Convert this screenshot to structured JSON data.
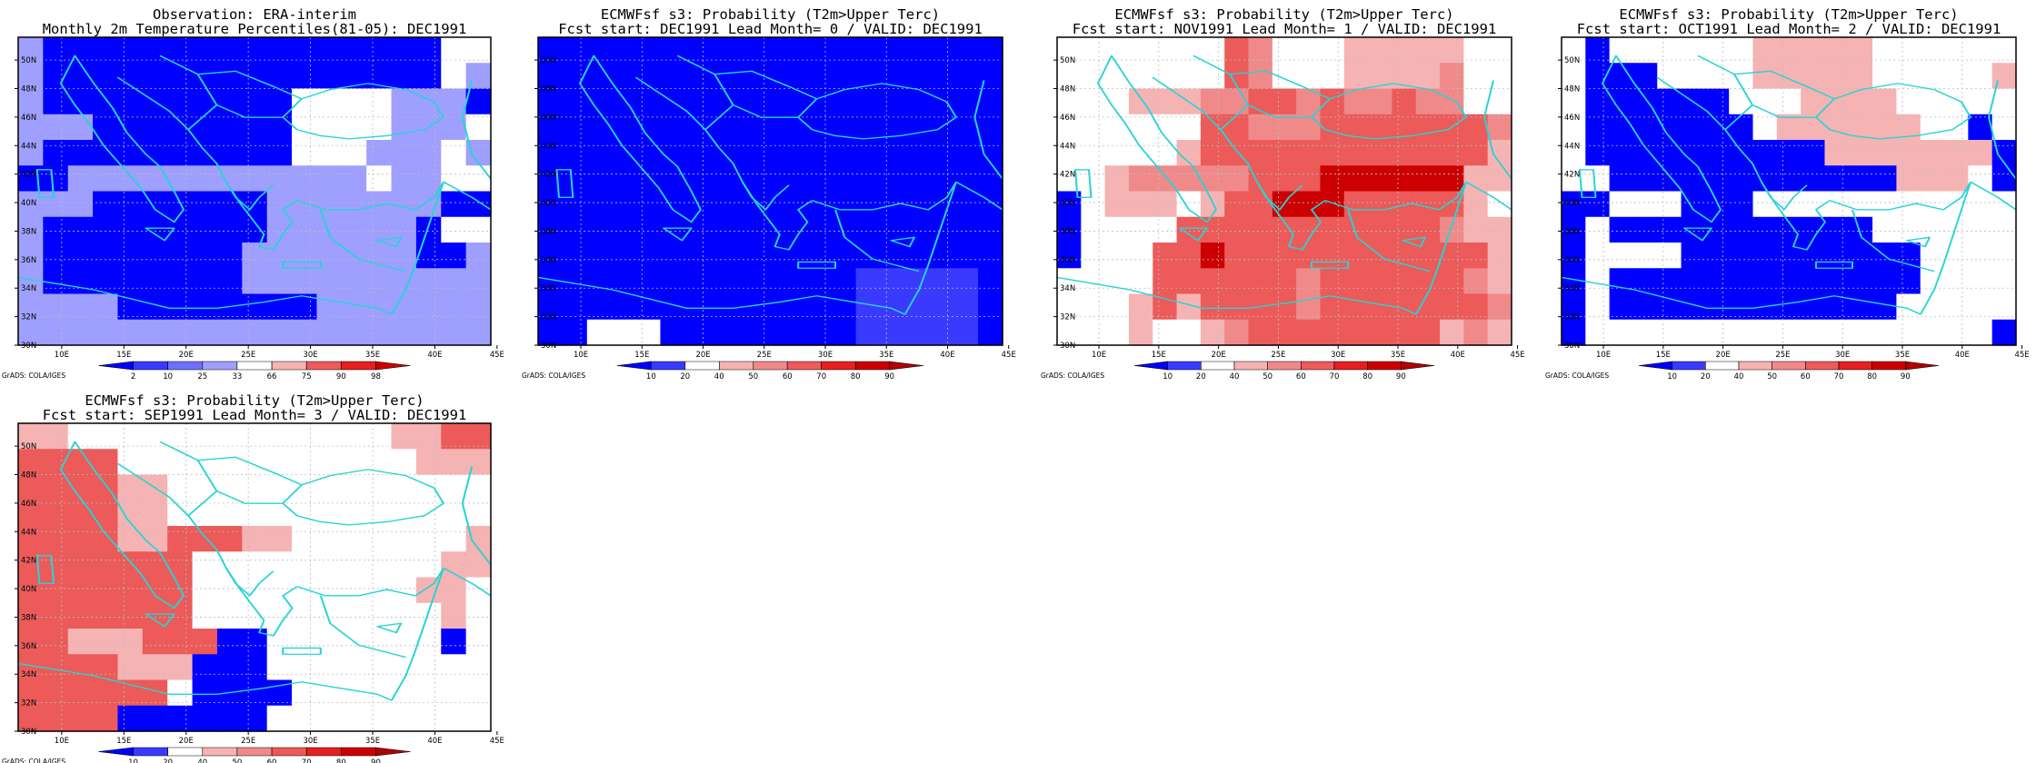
{
  "colors": {
    "deep_blue": "#0000ff",
    "mid_blue": "#3a3aff",
    "light_blue": "#9f9fff",
    "pale_red": "#f6b3b3",
    "light_red": "#f08a8a",
    "mid_red": "#ec5a5a",
    "red": "#e62020",
    "dark_red": "#cc0000",
    "coast": "#27d4d4",
    "grid": "#bdbdbd"
  },
  "credit": "GrADS: COLA/IGES",
  "lon_ticks": [
    "10E",
    "15E",
    "20E",
    "25E",
    "30E",
    "35E",
    "40E",
    "45E"
  ],
  "lat_ticks": [
    "30N",
    "32N",
    "34N",
    "36N",
    "38N",
    "40N",
    "42N",
    "44N",
    "46N",
    "48N",
    "50N"
  ],
  "colorbars": {
    "percentile": {
      "labels": [
        "2",
        "10",
        "25",
        "33",
        "66",
        "75",
        "90",
        "98"
      ],
      "colors": [
        "#0000ff",
        "#3a3aff",
        "#6f6fff",
        "#9f9fff",
        "#ffffff",
        "#f6b3b3",
        "#ec5a5a",
        "#e62020",
        "#cc0000"
      ]
    },
    "probability": {
      "labels": [
        "10",
        "20",
        "40",
        "50",
        "60",
        "70",
        "80",
        "90"
      ],
      "colors": [
        "#0000ff",
        "#3a3aff",
        "#ffffff",
        "#f6b3b3",
        "#f08a8a",
        "#ec5a5a",
        "#e62020",
        "#cc0000",
        "#b00000"
      ]
    }
  },
  "panels": [
    {
      "title1": "Observation: ERA-interim",
      "title2": "Monthly 2m Temperature Percentiles(81-05): DEC1991",
      "colorbar": "percentile",
      "grid": [
        "aBBBBBBBBBBBBBBBBww",
        "aBBBBBBBBBBBBBBBBwa",
        "aBBBBBBBBBBwwwwaaaB",
        "aaaBBBBBBBBwwwwaaaw",
        "aBBBBBBBBBBwwwaaawa",
        "BBaaaaaaaaaaaawaaww",
        "aaaBBBBBBBaaaaaaaBB",
        "aBBBBBBBBBaaaaaaBww",
        "aBBBBBBBBaaaaaaaBBa",
        "aBBBBBBBBaaaaaaaaaa",
        "aaaaBBBBBBBBaaaaaaa",
        "aaaaaaaaaaaaaaaaaaa"
      ]
    },
    {
      "title1": "ECMWFsf s3: Probability (T2m>Upper Terc)",
      "title2": "Fcst start: DEC1991  Lead Month= 0 / VALID: DEC1991",
      "colorbar": "probability",
      "grid": [
        "BBBBBBBBBBBBBBBBBBB",
        "BBBBBBBBBBBBBBBBBBB",
        "BBBBBBBBBBBBBBBBBBB",
        "BBBBBBBBBBBBBBBBBBB",
        "BBBBBBBBBBBBBBBBBBB",
        "BBBBBBBBBBBBBBBBBBB",
        "BBBBBBBBBBBBBBBBBBB",
        "BBBBBBBBBBBBBBBBBBB",
        "BBBBBBBBBBBBBBBBBBB",
        "BBBBBBBBBBBBBbbbbbB",
        "BBBBBBBBBBBBBbbbbbB",
        "BBwwwBBBBBBBBbbbbbB"
      ]
    },
    {
      "title1": "ECMWFsf s3: Probability (T2m>Upper Terc)",
      "title2": "Fcst start: NOV1991  Lead Month= 1 / VALID: DEC1991",
      "colorbar": "probability",
      "grid": [
        "wwwwwwwRPwwwpppppww",
        "wwwwwwwRPwwwppppPww",
        "wwwpppPPRRPRPPRPPww",
        "wwwwwwRRPPPRRRRRRRP",
        "wwwwwpRRRRRRRRRRRRp",
        "wwpPPPPPRRRDDDDDDpp",
        "Bwppp pRRDDDRRRRRpw",
        "BwwwwRRRRRRRRRRRPpp",
        "BwwwRRDRRRRRRRRRRRp",
        "wwwwRRRRRRPRRRRRRPp",
        "wwwpRpRRRRPRRRRRRRP",
        "wwwpwwpPRRRRRRRRpPp"
      ]
    },
    {
      "title1": "ECMWFsf s3: Probability (T2m>Upper Terc)",
      "title2": "Fcst start: OCT1991  Lead Month= 2 / VALID: DEC1991",
      "colorbar": "probability",
      "grid": [
        "wBwwwwwwpppppwwwwww",
        "wBBBwwwwpppppwwwwwp",
        "wBBBBBBwwwppppwwwww",
        "wBBBBBBBwppppppwwBw",
        "wBBBBBBBBBBpppppppB",
        "wwBBBBBBBBBBBBpppwB",
        "BBwwwBBBwwwwwwwwwww",
        "BwBBBBBBBBBBBwwwwww",
        "BwwwwBBBBBBBBBBwwww",
        "BwBBBBBBBBBBBBBwwww",
        "BwBBBBBBBBBBBBwwwww",
        "BwwwwwwwwwwwwwwwwwB"
      ]
    },
    {
      "title1": "ECMWFsf s3: Probability (T2m>Upper Terc)",
      "title2": "Fcst start: SEP1991  Lead Month= 3 / VALID: DEC1991",
      "colorbar": "probability",
      "grid": [
        "ppwwwwwwwwwwwwwppRR",
        "RRRRwwwwwwwwwwwwppp",
        "RRRRppwwwwwwwwwwwww",
        "RRRRppwwwwwwwwwwwww",
        "RRRRppRRRppwwwwwwwp",
        "RRRRRRRwwwwwwwwwwpp",
        "RRRRRRRwwwwwwwwwppw",
        "RRRRRRRwwwwwwwwwwpw",
        "RRpppRRRBBwwwwwwwBw",
        "RRRRpppBBBwwwwwwwww",
        "RRRRRRwBBBBwwwwwwww",
        "RRRRBBBBBBwwwwwwwww"
      ]
    }
  ]
}
